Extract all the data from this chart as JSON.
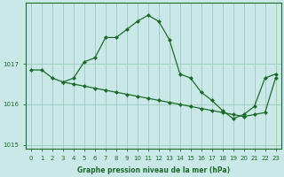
{
  "bg_color": "#cbe8e8",
  "plot_bg_color": "#cbe8e8",
  "grid_color": "#99ccbb",
  "line_color": "#1a6b2a",
  "marker_color": "#1a6b2a",
  "series1": {
    "x": [
      0,
      1,
      2,
      3,
      4,
      5,
      6,
      7,
      8,
      9,
      10,
      11,
      12,
      13,
      14,
      15,
      16,
      17,
      18,
      19,
      20,
      21,
      22,
      23
    ],
    "y": [
      1016.85,
      1016.85,
      1016.65,
      1016.55,
      1016.65,
      1017.05,
      1017.15,
      1017.65,
      1017.65,
      1017.85,
      1018.05,
      1018.2,
      1018.05,
      1017.6,
      1016.75,
      1016.65,
      1016.3,
      1016.1,
      1015.85,
      1015.65,
      1015.75,
      1015.95,
      1016.65,
      1016.75
    ]
  },
  "series2": {
    "x": [
      3,
      4,
      5,
      6,
      7,
      8,
      9,
      10,
      11,
      12,
      13,
      14,
      15,
      16,
      17,
      18,
      19,
      20,
      21,
      22,
      23
    ],
    "y": [
      1016.55,
      1016.5,
      1016.45,
      1016.4,
      1016.35,
      1016.3,
      1016.25,
      1016.2,
      1016.15,
      1016.1,
      1016.05,
      1016.0,
      1015.95,
      1015.9,
      1015.85,
      1015.8,
      1015.75,
      1015.7,
      1015.75,
      1015.8,
      1016.65
    ]
  },
  "ylim": [
    1014.9,
    1018.5
  ],
  "yticks": [
    1015,
    1016,
    1017
  ],
  "xticks": [
    0,
    1,
    2,
    3,
    4,
    5,
    6,
    7,
    8,
    9,
    10,
    11,
    12,
    13,
    14,
    15,
    16,
    17,
    18,
    19,
    20,
    21,
    22,
    23
  ],
  "xlabel": "Graphe pression niveau de la mer (hPa)",
  "marker_size": 2.0,
  "line_width": 0.9,
  "tick_fontsize": 5.0,
  "xlabel_fontsize": 5.5
}
